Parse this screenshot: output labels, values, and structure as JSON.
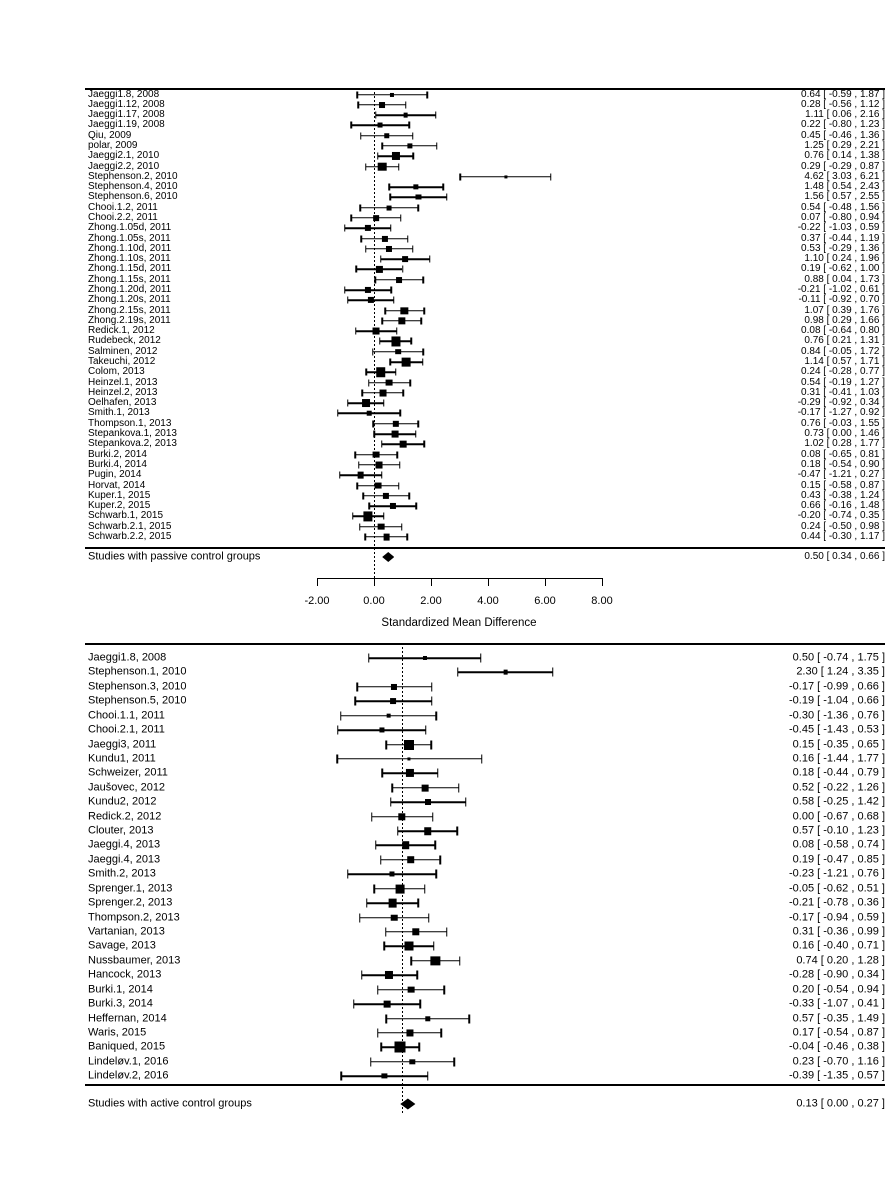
{
  "colors": {
    "foreground": "#000000",
    "background": "#ffffff"
  },
  "axis": {
    "label": "Standardized Mean Difference",
    "tick_labels": [
      "-2.00",
      "0.00",
      "2.00",
      "4.00",
      "6.00",
      "8.00"
    ],
    "tick_values": [
      -2,
      0,
      2,
      4,
      6,
      8
    ],
    "xlim": [
      -2,
      8
    ]
  },
  "chart_data": [
    {
      "type": "forest",
      "group": "passive",
      "xlabel": "Standardized Mean Difference",
      "xlim": [
        -2,
        8
      ],
      "zero_line": 0,
      "summary": {
        "label": "Studies with passive control groups",
        "est": 0.5,
        "lo": 0.34,
        "hi": 0.66
      },
      "studies": [
        {
          "label": "Jaeggi1.8, 2008",
          "est": 0.64,
          "lo": -0.59,
          "hi": 1.87
        },
        {
          "label": "Jaeggi1.12, 2008",
          "est": 0.28,
          "lo": -0.56,
          "hi": 1.12
        },
        {
          "label": "Jaeggi1.17, 2008",
          "est": 1.11,
          "lo": 0.06,
          "hi": 2.16
        },
        {
          "label": "Jaeggi1.19, 2008",
          "est": 0.22,
          "lo": -0.8,
          "hi": 1.23
        },
        {
          "label": "Qiu, 2009",
          "est": 0.45,
          "lo": -0.46,
          "hi": 1.36
        },
        {
          "label": "polar, 2009",
          "est": 1.25,
          "lo": 0.29,
          "hi": 2.21
        },
        {
          "label": "Jaeggi2.1, 2010",
          "est": 0.76,
          "lo": 0.14,
          "hi": 1.38
        },
        {
          "label": "Jaeggi2.2, 2010",
          "est": 0.29,
          "lo": -0.29,
          "hi": 0.87
        },
        {
          "label": "Stephenson.2, 2010",
          "est": 4.62,
          "lo": 3.03,
          "hi": 6.21
        },
        {
          "label": "Stephenson.4, 2010",
          "est": 1.48,
          "lo": 0.54,
          "hi": 2.43
        },
        {
          "label": "Stephenson.6, 2010",
          "est": 1.56,
          "lo": 0.57,
          "hi": 2.55
        },
        {
          "label": "Chooi.1.2, 2011",
          "est": 0.54,
          "lo": -0.48,
          "hi": 1.56
        },
        {
          "label": "Chooi.2.2, 2011",
          "est": 0.07,
          "lo": -0.8,
          "hi": 0.94
        },
        {
          "label": "Zhong.1.05d, 2011",
          "est": -0.22,
          "lo": -1.03,
          "hi": 0.59
        },
        {
          "label": "Zhong.1.05s, 2011",
          "est": 0.37,
          "lo": -0.44,
          "hi": 1.19
        },
        {
          "label": "Zhong.1.10d, 2011",
          "est": 0.53,
          "lo": -0.29,
          "hi": 1.36
        },
        {
          "label": "Zhong.1.10s, 2011",
          "est": 1.1,
          "lo": 0.24,
          "hi": 1.96
        },
        {
          "label": "Zhong.1.15d, 2011",
          "est": 0.19,
          "lo": -0.62,
          "hi": 1.0
        },
        {
          "label": "Zhong.1.15s, 2011",
          "est": 0.88,
          "lo": 0.04,
          "hi": 1.73
        },
        {
          "label": "Zhong.1.20d, 2011",
          "est": -0.21,
          "lo": -1.02,
          "hi": 0.61
        },
        {
          "label": "Zhong.1.20s, 2011",
          "est": -0.11,
          "lo": -0.92,
          "hi": 0.7
        },
        {
          "label": "Zhong.2.15s, 2011",
          "est": 1.07,
          "lo": 0.39,
          "hi": 1.76
        },
        {
          "label": "Zhong.2.19s, 2011",
          "est": 0.98,
          "lo": 0.29,
          "hi": 1.66
        },
        {
          "label": "Redick.1, 2012",
          "est": 0.08,
          "lo": -0.64,
          "hi": 0.8
        },
        {
          "label": "Rudebeck, 2012",
          "est": 0.76,
          "lo": 0.21,
          "hi": 1.31
        },
        {
          "label": "Salminen, 2012",
          "est": 0.84,
          "lo": -0.05,
          "hi": 1.72
        },
        {
          "label": "Takeuchi, 2012",
          "est": 1.14,
          "lo": 0.57,
          "hi": 1.71
        },
        {
          "label": "Colom, 2013",
          "est": 0.24,
          "lo": -0.28,
          "hi": 0.77
        },
        {
          "label": "Heinzel.1, 2013",
          "est": 0.54,
          "lo": -0.19,
          "hi": 1.27
        },
        {
          "label": "Heinzel.2, 2013",
          "est": 0.31,
          "lo": -0.41,
          "hi": 1.03
        },
        {
          "label": "Oelhafen, 2013",
          "est": -0.29,
          "lo": -0.92,
          "hi": 0.34
        },
        {
          "label": "Smith.1, 2013",
          "est": -0.17,
          "lo": -1.27,
          "hi": 0.92
        },
        {
          "label": "Thompson.1, 2013",
          "est": 0.76,
          "lo": -0.03,
          "hi": 1.55
        },
        {
          "label": "Stepankova.1, 2013",
          "est": 0.73,
          "lo": 0.0,
          "hi": 1.46
        },
        {
          "label": "Stepankova.2, 2013",
          "est": 1.02,
          "lo": 0.28,
          "hi": 1.77
        },
        {
          "label": "Burki.2, 2014",
          "est": 0.08,
          "lo": -0.65,
          "hi": 0.81
        },
        {
          "label": "Burki.4, 2014",
          "est": 0.18,
          "lo": -0.54,
          "hi": 0.9
        },
        {
          "label": "Pugin, 2014",
          "est": -0.47,
          "lo": -1.21,
          "hi": 0.27
        },
        {
          "label": "Horvat, 2014",
          "est": 0.15,
          "lo": -0.58,
          "hi": 0.87
        },
        {
          "label": "Kuper.1, 2015",
          "est": 0.43,
          "lo": -0.38,
          "hi": 1.24
        },
        {
          "label": "Kuper.2, 2015",
          "est": 0.66,
          "lo": -0.16,
          "hi": 1.48
        },
        {
          "label": "Schwarb.1, 2015",
          "est": -0.2,
          "lo": -0.74,
          "hi": 0.35
        },
        {
          "label": "Schwarb.2.1, 2015",
          "est": 0.24,
          "lo": -0.5,
          "hi": 0.98
        },
        {
          "label": "Schwarb.2.2, 2015",
          "est": 0.44,
          "lo": -0.3,
          "hi": 1.17
        }
      ]
    },
    {
      "type": "forest",
      "group": "active",
      "xlabel": "Standardized Mean Difference",
      "xlim": [
        -2,
        8
      ],
      "zero_line": 0,
      "summary": {
        "label": "Studies with active control groups",
        "est": 0.13,
        "lo": 0.0,
        "hi": 0.27
      },
      "studies": [
        {
          "label": "Jaeggi1.8, 2008",
          "est": 0.5,
          "lo": -0.74,
          "hi": 1.75
        },
        {
          "label": "Stephenson.1, 2010",
          "est": 2.3,
          "lo": 1.24,
          "hi": 3.35
        },
        {
          "label": "Stephenson.3, 2010",
          "est": -0.17,
          "lo": -0.99,
          "hi": 0.66
        },
        {
          "label": "Stephenson.5, 2010",
          "est": -0.19,
          "lo": -1.04,
          "hi": 0.66
        },
        {
          "label": "Chooi.1.1, 2011",
          "est": -0.3,
          "lo": -1.36,
          "hi": 0.76
        },
        {
          "label": "Chooi.2.1, 2011",
          "est": -0.45,
          "lo": -1.43,
          "hi": 0.53
        },
        {
          "label": "Jaeggi3, 2011",
          "est": 0.15,
          "lo": -0.35,
          "hi": 0.65
        },
        {
          "label": "Kundu1, 2011",
          "est": 0.16,
          "lo": -1.44,
          "hi": 1.77
        },
        {
          "label": "Schweizer, 2011",
          "est": 0.18,
          "lo": -0.44,
          "hi": 0.79
        },
        {
          "label": "Jaušovec, 2012",
          "est": 0.52,
          "lo": -0.22,
          "hi": 1.26
        },
        {
          "label": "Kundu2, 2012",
          "est": 0.58,
          "lo": -0.25,
          "hi": 1.42
        },
        {
          "label": "Redick.2, 2012",
          "est": 0.0,
          "lo": -0.67,
          "hi": 0.68
        },
        {
          "label": "Clouter, 2013",
          "est": 0.57,
          "lo": -0.1,
          "hi": 1.23
        },
        {
          "label": "Jaeggi.4, 2013",
          "est": 0.08,
          "lo": -0.58,
          "hi": 0.74
        },
        {
          "label": "Jaeggi.4, 2013",
          "est": 0.19,
          "lo": -0.47,
          "hi": 0.85
        },
        {
          "label": "Smith.2, 2013",
          "est": -0.23,
          "lo": -1.21,
          "hi": 0.76
        },
        {
          "label": "Sprenger.1, 2013",
          "est": -0.05,
          "lo": -0.62,
          "hi": 0.51
        },
        {
          "label": "Sprenger.2, 2013",
          "est": -0.21,
          "lo": -0.78,
          "hi": 0.36
        },
        {
          "label": "Thompson.2, 2013",
          "est": -0.17,
          "lo": -0.94,
          "hi": 0.59
        },
        {
          "label": "Vartanian, 2013",
          "est": 0.31,
          "lo": -0.36,
          "hi": 0.99
        },
        {
          "label": "Savage, 2013",
          "est": 0.16,
          "lo": -0.4,
          "hi": 0.71
        },
        {
          "label": "Nussbaumer, 2013",
          "est": 0.74,
          "lo": 0.2,
          "hi": 1.28
        },
        {
          "label": "Hancock, 2013",
          "est": -0.28,
          "lo": -0.9,
          "hi": 0.34
        },
        {
          "label": "Burki.1, 2014",
          "est": 0.2,
          "lo": -0.54,
          "hi": 0.94
        },
        {
          "label": "Burki.3, 2014",
          "est": -0.33,
          "lo": -1.07,
          "hi": 0.41
        },
        {
          "label": "Heffernan, 2014",
          "est": 0.57,
          "lo": -0.35,
          "hi": 1.49
        },
        {
          "label": "Waris, 2015",
          "est": 0.17,
          "lo": -0.54,
          "hi": 0.87
        },
        {
          "label": "Baniqued, 2015",
          "est": -0.04,
          "lo": -0.46,
          "hi": 0.38
        },
        {
          "label": "Lindeløv.1, 2016",
          "est": 0.23,
          "lo": -0.7,
          "hi": 1.16
        },
        {
          "label": "Lindeløv.2, 2016",
          "est": -0.39,
          "lo": -1.35,
          "hi": 0.57
        }
      ]
    }
  ]
}
